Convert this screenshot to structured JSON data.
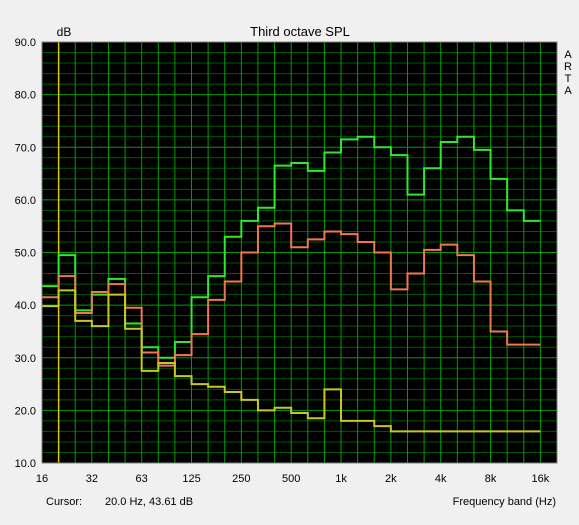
{
  "chart_data": {
    "type": "line",
    "title": "Third octave SPL",
    "ylabel": "dB",
    "xlabel": "Frequency band (Hz)",
    "watermark": [
      "A",
      "R",
      "T",
      "A"
    ],
    "ylim": [
      10,
      90
    ],
    "y_ticks": [
      "90.0",
      "80.0",
      "70.0",
      "60.0",
      "50.0",
      "40.0",
      "30.0",
      "20.0",
      "10.0"
    ],
    "x_ticks": [
      "16",
      "32",
      "63",
      "125",
      "250",
      "500",
      "1k",
      "2k",
      "4k",
      "8k",
      "16k"
    ],
    "bands_hz": [
      16,
      20,
      25,
      31.5,
      40,
      50,
      63,
      80,
      100,
      125,
      160,
      200,
      250,
      315,
      400,
      500,
      630,
      800,
      1000,
      1250,
      1600,
      2000,
      2500,
      3150,
      4000,
      5000,
      6300,
      8000,
      10000,
      12500,
      16000,
      20000
    ],
    "cursor_hz": 20.0,
    "cursor_label": "Cursor:",
    "cursor_readout": "20.0 Hz, 43.61 dB",
    "background_color": "#000000",
    "grid_major_color": "#00a000",
    "grid_minor_color": "#005a00",
    "cursor_color": "#d8c800",
    "series": [
      {
        "color": "#30e830",
        "values": [
          43.6,
          49.5,
          39,
          42,
          45,
          36.5,
          32,
          30,
          33,
          41.5,
          45.5,
          53,
          56,
          58.5,
          66.5,
          67,
          65.5,
          69,
          71.5,
          72,
          70,
          68.5,
          61,
          66,
          71,
          72,
          69.5,
          64,
          58,
          56
        ]
      },
      {
        "color": "#f07850",
        "values": [
          41.5,
          45.5,
          38.5,
          42.5,
          44,
          39.5,
          31,
          28.5,
          30.5,
          34.5,
          41,
          44.5,
          50,
          55,
          55.5,
          51,
          52.5,
          54,
          53.5,
          52,
          50,
          43,
          46,
          50.5,
          51.5,
          49.5,
          44.5,
          35,
          32.5,
          32.5
        ]
      },
      {
        "color": "#c8c820",
        "values": [
          39.8,
          42.8,
          37,
          36,
          42,
          35.5,
          27.5,
          29,
          26.5,
          25,
          24.5,
          23.5,
          22,
          20,
          20.5,
          19.5,
          18.5,
          24,
          18,
          18,
          17,
          16,
          16,
          16,
          16,
          16,
          16,
          16,
          16,
          16
        ]
      }
    ]
  }
}
